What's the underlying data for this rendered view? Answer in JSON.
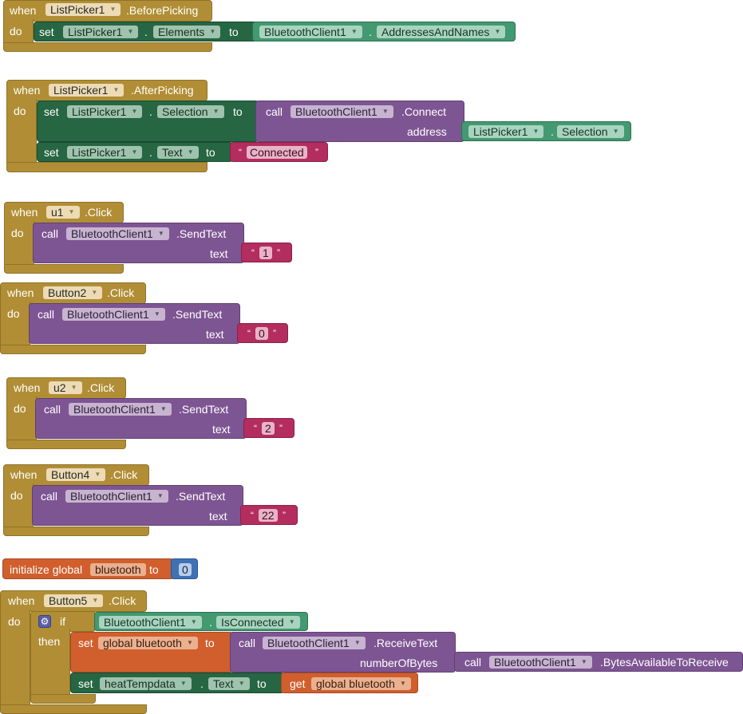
{
  "kw": {
    "when": "when",
    "do": "do",
    "set": "set",
    "to": "to",
    "call": "call",
    "if": "if",
    "then": "then",
    "get": "get",
    "dot": ".",
    "text": "text",
    "address": "address",
    "numberOfBytes": "numberOfBytes",
    "init_global": "initialize global",
    "open_quote": "“",
    "close_quote": "”"
  },
  "blocks": {
    "b1": {
      "component": "ListPicker1",
      "event": ".BeforePicking",
      "set_comp": "ListPicker1",
      "set_prop": "Elements",
      "val_comp": "BluetoothClient1",
      "val_prop": "AddressesAndNames"
    },
    "b2": {
      "component": "ListPicker1",
      "event": ".AfterPicking",
      "set1_comp": "ListPicker1",
      "set1_prop": "Selection",
      "call_comp": "BluetoothClient1",
      "call_method": ".Connect",
      "arg_comp": "ListPicker1",
      "arg_prop": "Selection",
      "set2_comp": "ListPicker1",
      "set2_prop": "Text",
      "set2_value": "Connected"
    },
    "b3": {
      "component": "u1",
      "event": ".Click",
      "call_comp": "BluetoothClient1",
      "call_method": ".SendText",
      "text_value": "1"
    },
    "b4": {
      "component": "Button2",
      "event": ".Click",
      "call_comp": "BluetoothClient1",
      "call_method": ".SendText",
      "text_value": "0"
    },
    "b5": {
      "component": "u2",
      "event": ".Click",
      "call_comp": "BluetoothClient1",
      "call_method": ".SendText",
      "text_value": "2"
    },
    "b6": {
      "component": "Button4",
      "event": ".Click",
      "call_comp": "BluetoothClient1",
      "call_method": ".SendText",
      "text_value": "22"
    },
    "b7": {
      "var_name": "bluetooth",
      "value": "0"
    },
    "b8": {
      "component": "Button5",
      "event": ".Click",
      "cond_comp": "BluetoothClient1",
      "cond_prop": "IsConnected",
      "set1_var": "global bluetooth",
      "call_comp": "BluetoothClient1",
      "call_method": ".ReceiveText",
      "arg_comp": "BluetoothClient1",
      "arg_method": ".BytesAvailableToReceive",
      "set2_comp": "heatTempdata",
      "set2_prop": "Text",
      "get_var": "global bluetooth"
    }
  },
  "colors": {
    "event": "#b18e35",
    "call": "#7e5593",
    "setter": "#266643",
    "getter": "#439970",
    "text": "#b32d5e",
    "variable": "#d05f2d",
    "math": "#3f71b5",
    "control": "#b18e35"
  }
}
